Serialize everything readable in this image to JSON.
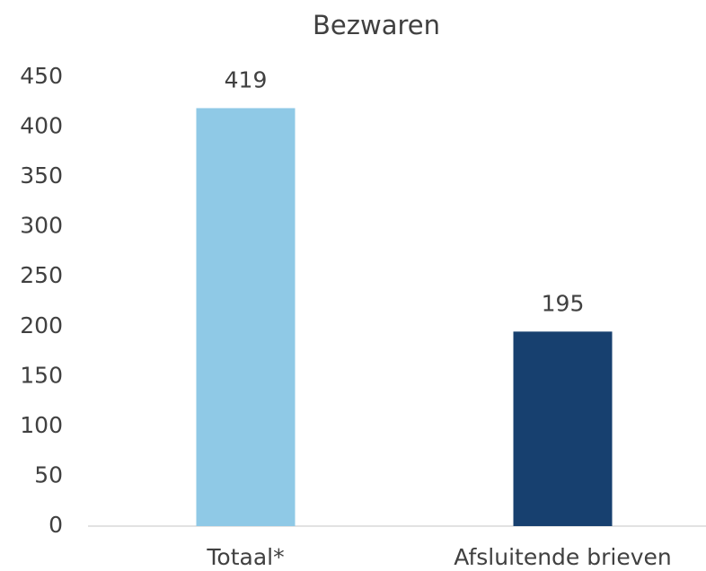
{
  "chart_data": {
    "type": "bar",
    "title": "Bezwaren",
    "categories": [
      "Totaal*",
      "Afsluitende brieven"
    ],
    "values": [
      419,
      195
    ],
    "colors": [
      "#8fc9e6",
      "#17406f"
    ],
    "ylim": [
      0,
      450
    ],
    "yticks": [
      0,
      50,
      100,
      150,
      200,
      250,
      300,
      350,
      400,
      450
    ],
    "grid": false,
    "value_labels_shown": true
  }
}
